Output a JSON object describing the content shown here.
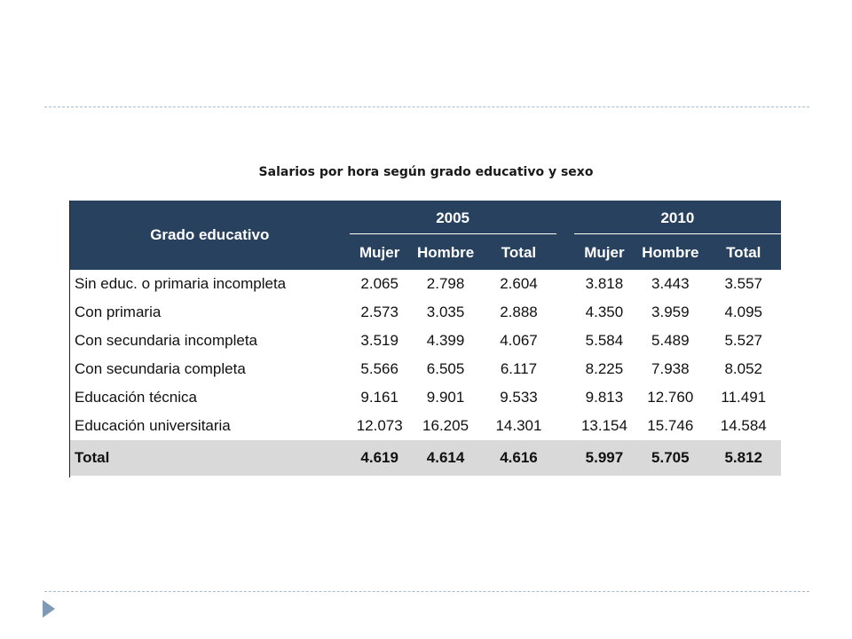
{
  "slide": {
    "title": "Salarios por hora según grado educativo y sexo"
  },
  "table": {
    "header_label": "Grado educativo",
    "years": [
      "2005",
      "2010"
    ],
    "sub_headers": [
      "Mujer",
      "Hombre",
      "Total",
      "Mujer",
      "Hombre",
      "Total"
    ],
    "rows": [
      {
        "label": "Sin educ. o primaria incompleta",
        "values": [
          "2.065",
          "2.798",
          "2.604",
          "3.818",
          "3.443",
          "3.557"
        ]
      },
      {
        "label": "Con primaria",
        "values": [
          "2.573",
          "3.035",
          "2.888",
          "4.350",
          "3.959",
          "4.095"
        ]
      },
      {
        "label": "Con secundaria incompleta",
        "values": [
          "3.519",
          "4.399",
          "4.067",
          "5.584",
          "5.489",
          "5.527"
        ]
      },
      {
        "label": "Con secundaria completa",
        "values": [
          "5.566",
          "6.505",
          "6.117",
          "8.225",
          "7.938",
          "8.052"
        ]
      },
      {
        "label": "Educación técnica",
        "values": [
          "9.161",
          "9.901",
          "9.533",
          "9.813",
          "12.760",
          "11.491"
        ]
      },
      {
        "label": "Educación universitaria",
        "values": [
          "12.073",
          "16.205",
          "14.301",
          "13.154",
          "15.746",
          "14.584"
        ]
      }
    ],
    "total": {
      "label": "Total",
      "values": [
        "4.619",
        "4.614",
        "4.616",
        "5.997",
        "5.705",
        "5.812"
      ]
    }
  },
  "colors": {
    "header_bg": "#27415f",
    "total_bg": "#d9d9d9",
    "dash_line": "#a9bccd",
    "nav_arrow": "#7f9ab5"
  },
  "icons": {
    "nav": "next-slide-arrow-icon"
  }
}
